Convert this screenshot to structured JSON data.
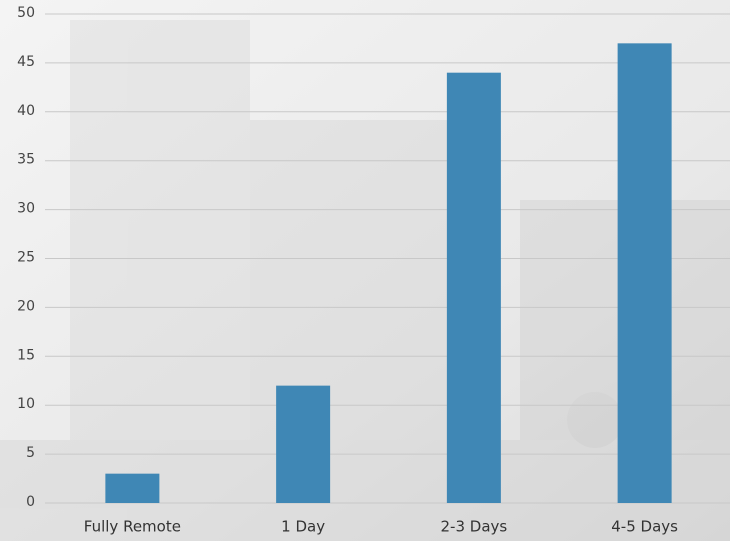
{
  "chart_data": {
    "type": "bar",
    "categories": [
      "Fully Remote",
      "1 Day",
      "2-3 Days",
      "4-5 Days"
    ],
    "values": [
      3,
      12,
      44,
      47
    ],
    "color": "#3f87b5",
    "ylim": [
      0,
      50
    ],
    "yticks": [
      0,
      5,
      10,
      15,
      20,
      25,
      30,
      35,
      40,
      45,
      50
    ],
    "grid": true
  }
}
